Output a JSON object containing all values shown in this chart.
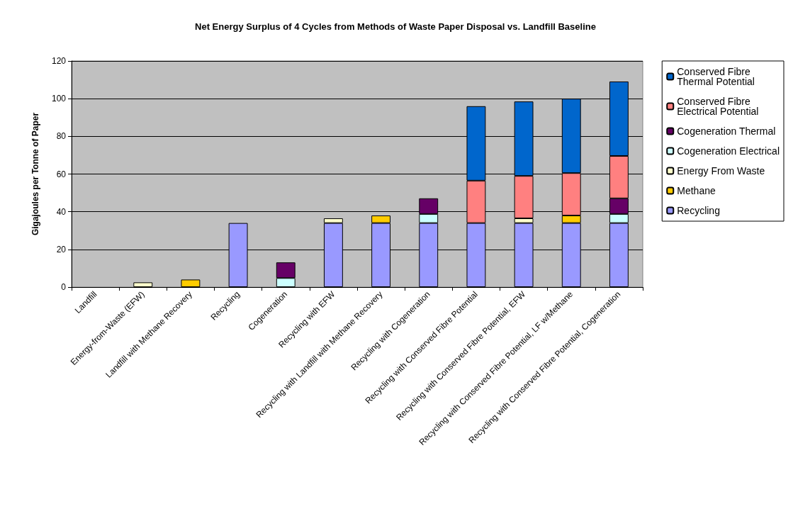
{
  "chart_data": {
    "type": "bar",
    "stacked": true,
    "title": "Net Energy Surplus of 4 Cycles from Methods of Waste Paper Disposal vs. Landfill Baseline",
    "ylabel": "Gigajoules per Tonne of Paper",
    "categories": [
      "Landfill",
      "Energy-from-Waste (EFW)",
      "Landfill with Methane Recovery",
      "Recycling",
      "Cogeneration",
      "Recycling with EFW",
      "Recycling with Landfill with Methane Recovery",
      "Recycling with Cogeneration",
      "Recycling with Conserved Fibre Potential",
      "Recycling with Conserved Fibre Potential, EFW",
      "Recycling with Conserved Fibre Potential, LF w/Methane",
      "Recycling with Conserved Fibre Potential, Cogeneration"
    ],
    "series": [
      {
        "name": "Recycling",
        "color": "#9999ff",
        "values": [
          null,
          null,
          null,
          34,
          null,
          34,
          34,
          34,
          34,
          34,
          34,
          34
        ]
      },
      {
        "name": "Methane",
        "color": "#ffcc00",
        "values": [
          null,
          null,
          4,
          null,
          null,
          null,
          4,
          null,
          null,
          null,
          4,
          null
        ]
      },
      {
        "name": "Energy From Waste",
        "color": "#ffffcc",
        "values": [
          null,
          2.5,
          null,
          null,
          null,
          2.5,
          null,
          null,
          null,
          2.5,
          null,
          null
        ]
      },
      {
        "name": "Cogeneration Electrical",
        "color": "#ccffff",
        "values": [
          null,
          null,
          null,
          null,
          4.8,
          null,
          null,
          4.8,
          null,
          null,
          null,
          4.8
        ]
      },
      {
        "name": "Cogeneration Thermal",
        "color": "#660066",
        "values": [
          null,
          null,
          null,
          null,
          8.3,
          null,
          null,
          8.3,
          null,
          null,
          null,
          8.3
        ]
      },
      {
        "name": "Conserved Fibre Electrical Potential",
        "color": "#ff8080",
        "values": [
          null,
          null,
          null,
          null,
          null,
          null,
          null,
          null,
          22.5,
          22.5,
          22.5,
          22.5
        ]
      },
      {
        "name": "Conserved Fibre Thermal Potential",
        "color": "#0066cc",
        "values": [
          null,
          null,
          null,
          null,
          null,
          null,
          null,
          null,
          39.5,
          39.5,
          39.5,
          39.5
        ]
      }
    ],
    "ylim": [
      0,
      120
    ],
    "yticks": [
      0,
      20,
      40,
      60,
      80,
      100,
      120
    ],
    "grid": "y",
    "legend": "right"
  }
}
